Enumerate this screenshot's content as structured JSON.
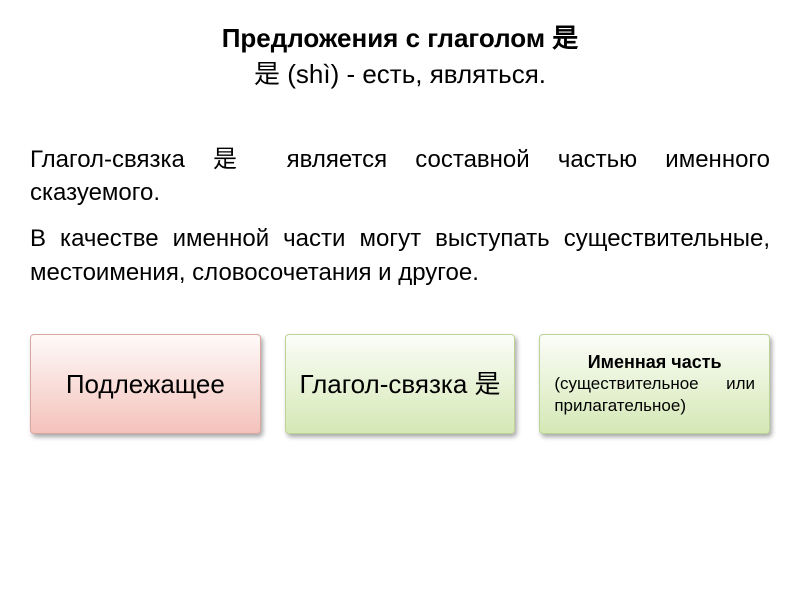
{
  "title": {
    "line1": "Предложения с глаголом 是",
    "line2": "是 (shì) - есть, являться."
  },
  "paragraphs": [
    "Глагол-связка 是 является составной частью именного сказуемого.",
    "В качестве именной части могут выступать существительные, местоимения, словосочетания и другое."
  ],
  "boxes": [
    {
      "type": "subject",
      "main": "Подлежащее",
      "bg": "red"
    },
    {
      "type": "verb",
      "main": "Глагол-связка 是",
      "bg": "green"
    },
    {
      "type": "nominal",
      "title": "Именная часть",
      "sub": "(существительное или прилагательное)",
      "bg": "green"
    }
  ],
  "style": {
    "title_fontsize": 26,
    "body_fontsize": 24,
    "box_main_fontsize": 26,
    "box_title_fontsize": 18,
    "box_sub_fontsize": 17,
    "colors": {
      "text": "#000000",
      "background": "#ffffff",
      "box_red_top": "#fefaf9",
      "box_red_bottom": "#f4c2bb",
      "box_red_border": "#d8a79f",
      "box_green_top": "#fbfdf8",
      "box_green_bottom": "#d5e8b5",
      "box_green_border": "#bcd398",
      "shadow": "rgba(0,0,0,0.35)"
    }
  }
}
